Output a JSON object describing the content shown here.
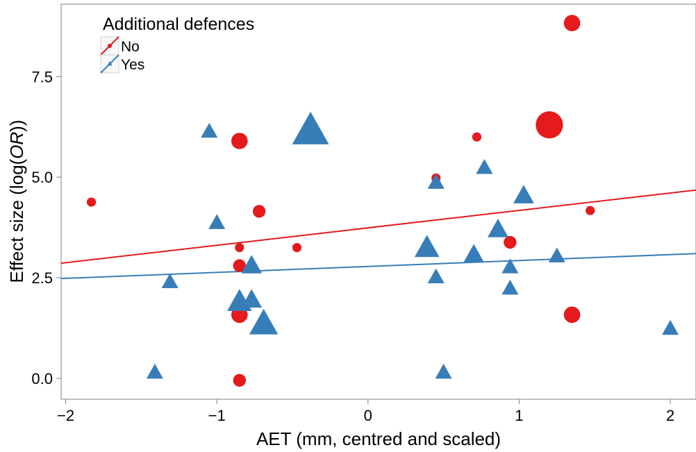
{
  "chart_data": {
    "type": "scatter",
    "xlabel": "AET (mm, centred and scaled)",
    "ylabel_prefix": "Effect size (log(",
    "ylabel_italic": "OR",
    "ylabel_suffix": "))",
    "xlim": [
      -2.03,
      2.17
    ],
    "ylim": [
      -0.52,
      9.3
    ],
    "xticks": [
      -2,
      -1,
      0,
      1,
      2
    ],
    "xtick_labels": [
      "−2",
      "−1",
      "0",
      "1",
      "2"
    ],
    "yticks": [
      0,
      2.5,
      5,
      7.5
    ],
    "ytick_labels": [
      "0.0",
      "2.5",
      "5.0",
      "7.5"
    ],
    "grid": false,
    "legend": {
      "title": "Additional defences",
      "placement": "top-left",
      "items": [
        {
          "label": "No",
          "color": "#e41a1c",
          "shape": "circle"
        },
        {
          "label": "Yes",
          "color": "#377eb8",
          "shape": "triangle"
        }
      ]
    },
    "series": [
      {
        "name": "No",
        "color": "#e41a1c",
        "shape": "circle",
        "trend": {
          "x": [
            -2.03,
            2.17
          ],
          "y": [
            2.86,
            4.68
          ]
        },
        "points": [
          {
            "x": -1.83,
            "y": 4.38,
            "w": 1
          },
          {
            "x": -0.85,
            "y": 5.9,
            "w": 3
          },
          {
            "x": -0.72,
            "y": 4.15,
            "w": 2
          },
          {
            "x": -0.85,
            "y": 3.25,
            "w": 1
          },
          {
            "x": -0.85,
            "y": 2.8,
            "w": 2
          },
          {
            "x": -0.85,
            "y": 1.8,
            "w": 2
          },
          {
            "x": -0.85,
            "y": 1.58,
            "w": 3
          },
          {
            "x": -0.85,
            "y": -0.05,
            "w": 2
          },
          {
            "x": -0.47,
            "y": 3.25,
            "w": 1
          },
          {
            "x": 0.45,
            "y": 4.98,
            "w": 1
          },
          {
            "x": 0.72,
            "y": 6.0,
            "w": 1
          },
          {
            "x": 0.94,
            "y": 3.38,
            "w": 2
          },
          {
            "x": 1.2,
            "y": 6.3,
            "w": 6
          },
          {
            "x": 1.35,
            "y": 8.83,
            "w": 3
          },
          {
            "x": 1.35,
            "y": 1.58,
            "w": 3
          },
          {
            "x": 1.47,
            "y": 4.17,
            "w": 1
          }
        ]
      },
      {
        "name": "Yes",
        "color": "#377eb8",
        "shape": "triangle",
        "trend": {
          "x": [
            -2.03,
            2.17
          ],
          "y": [
            2.48,
            3.1
          ]
        },
        "points": [
          {
            "x": -1.41,
            "y": 0.13,
            "w": 2
          },
          {
            "x": -1.31,
            "y": 2.38,
            "w": 2
          },
          {
            "x": -1.05,
            "y": 6.12,
            "w": 2
          },
          {
            "x": -1.0,
            "y": 3.85,
            "w": 2
          },
          {
            "x": -0.85,
            "y": 1.88,
            "w": 4
          },
          {
            "x": -0.77,
            "y": 1.93,
            "w": 3
          },
          {
            "x": -0.77,
            "y": 2.78,
            "w": 3
          },
          {
            "x": -0.69,
            "y": 1.33,
            "w": 5
          },
          {
            "x": -0.38,
            "y": 6.12,
            "w": 7
          },
          {
            "x": 0.39,
            "y": 3.22,
            "w": 4
          },
          {
            "x": 0.45,
            "y": 4.85,
            "w": 2
          },
          {
            "x": 0.45,
            "y": 2.5,
            "w": 2
          },
          {
            "x": 0.5,
            "y": 0.13,
            "w": 2
          },
          {
            "x": 0.7,
            "y": 3.05,
            "w": 3
          },
          {
            "x": 0.77,
            "y": 5.22,
            "w": 2
          },
          {
            "x": 0.86,
            "y": 3.68,
            "w": 3
          },
          {
            "x": 0.94,
            "y": 2.75,
            "w": 2
          },
          {
            "x": 0.94,
            "y": 2.22,
            "w": 2
          },
          {
            "x": 1.03,
            "y": 4.52,
            "w": 3
          },
          {
            "x": 1.25,
            "y": 3.02,
            "w": 2
          },
          {
            "x": 2.0,
            "y": 1.22,
            "w": 2
          }
        ]
      }
    ]
  }
}
